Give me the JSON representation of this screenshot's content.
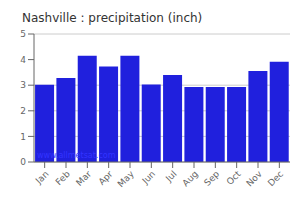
{
  "chart_data": {
    "type": "bar",
    "title": "Nashville : precipitation (inch)",
    "categories": [
      "Jan",
      "Feb",
      "Mar",
      "Apr",
      "May",
      "Jun",
      "Jul",
      "Aug",
      "Sep",
      "Oct",
      "Nov",
      "Dec"
    ],
    "values": [
      3.02,
      3.28,
      4.15,
      3.73,
      4.15,
      3.03,
      3.4,
      2.93,
      2.93,
      2.93,
      3.55,
      3.92
    ],
    "color": "#2020dd",
    "ylim": [
      0,
      5
    ],
    "yticks": [
      0,
      1,
      2,
      3,
      4,
      5
    ],
    "grid": true,
    "annotation": "www.allmetsat.com"
  }
}
